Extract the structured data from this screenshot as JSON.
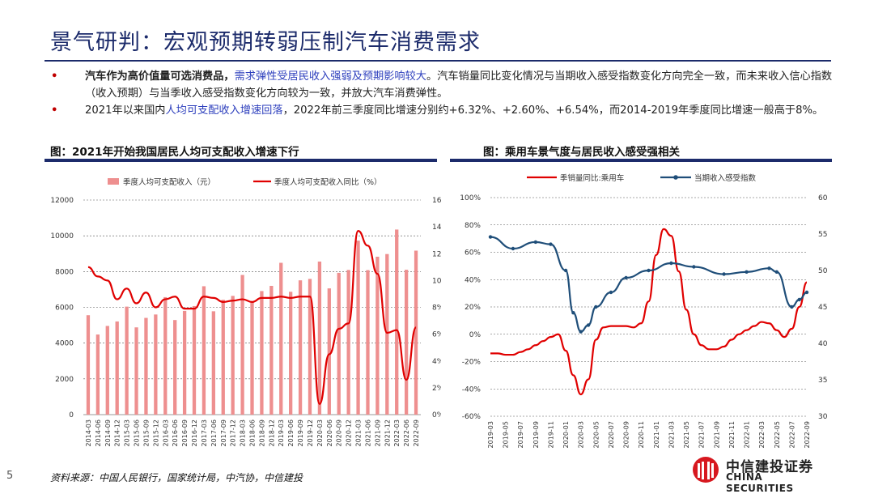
{
  "header": {
    "title": "景气研判：宏观预期转弱压制汽车消费需求"
  },
  "bullets": [
    {
      "bold": "汽车作为高价值量可选消费品，",
      "highlight": "需求弹性受居民收入强弱及预期影响较大",
      "rest": "。汽车销量同比变化情况与当期收入感受指数变化方向完全一致，而未来收入信心指数（收入预期）与当季收入感受指数变化方向较为一致，并放大汽车消费弹性。"
    },
    {
      "pre": "2021年以来国内",
      "highlight": "人均可支配收入增速回落",
      "rest": "，2022年前三季度同比增速分别约+6.32%、+2.60%、+6.54%，而2014-2019年季度同比增速一般高于8%。"
    }
  ],
  "figures": {
    "left_title": "图：2021年开始我国居民人均可支配收入增速下行",
    "right_title": "图：乘用车景气度与居民收入感受强相关"
  },
  "footer": {
    "page": "5",
    "source": "资料来源：中国人民银行，国家统计局，中汽协，中信建投",
    "logo_cn": "中信建投证券",
    "logo_en": "CHINA SECURITIES"
  },
  "colors": {
    "title": "#1c2b6b",
    "bar": "#ee8f8f",
    "red_line": "#e00000",
    "blue_line": "#1f4e79",
    "highlight": "#2d3fbd"
  },
  "chart_data": [
    {
      "type": "bar",
      "legend": [
        "季度人均可支配收入（元）",
        "季度人均可支配收入同比（%）"
      ],
      "categories": [
        "2014-03",
        "2014-06",
        "2014-09",
        "2014-12",
        "2015-03",
        "2015-06",
        "2015-09",
        "2015-12",
        "2016-03",
        "2016-06",
        "2016-09",
        "2016-12",
        "2017-03",
        "2017-06",
        "2017-09",
        "2017-12",
        "2018-03",
        "2018-06",
        "2018-09",
        "2018-12",
        "2019-03",
        "2019-06",
        "2019-09",
        "2019-12",
        "2020-03",
        "2020-06",
        "2020-09",
        "2020-12",
        "2021-03",
        "2021-06",
        "2021-09",
        "2021-12",
        "2022-03",
        "2022-06",
        "2022-09"
      ],
      "series": [
        {
          "name": "季度人均可支配收入（元）",
          "axis": "left",
          "values": [
            5560,
            4480,
            4960,
            5210,
            6040,
            4880,
            5410,
            5600,
            6570,
            5290,
            5800,
            6070,
            7180,
            5780,
            6420,
            6640,
            7810,
            6280,
            6910,
            7200,
            8490,
            6870,
            7510,
            7590,
            8560,
            7060,
            7930,
            8090,
            9730,
            8080,
            8830,
            8980,
            10350,
            8100,
            9170
          ]
        },
        {
          "name": "季度人均可支配收入同比（%）",
          "axis": "right",
          "values": [
            11.0,
            10.3,
            10.0,
            8.6,
            9.4,
            8.3,
            9.1,
            8.0,
            8.6,
            8.8,
            7.9,
            7.9,
            8.8,
            8.7,
            8.4,
            8.5,
            8.6,
            8.4,
            8.7,
            8.7,
            8.8,
            8.7,
            8.8,
            8.8,
            0.8,
            4.5,
            6.4,
            6.8,
            13.7,
            12.6,
            10.5,
            6.1,
            6.3,
            2.6,
            6.5
          ]
        }
      ],
      "y_left": {
        "min": 0,
        "max": 12000,
        "ticks": [
          "0",
          "2000",
          "4000",
          "6000",
          "8000",
          "10000",
          "12000"
        ]
      },
      "y_right": {
        "min": 0,
        "max": 16,
        "ticks": [
          "0%",
          "2%",
          "4%",
          "6%",
          "8%",
          "10%",
          "12%",
          "14%",
          "16%"
        ]
      }
    },
    {
      "type": "line",
      "legend": [
        "季销量同比:乘用车",
        "当期收入感受指数"
      ],
      "categories": [
        "2019-03",
        "2019-04",
        "2019-05",
        "2019-06",
        "2019-07",
        "2019-08",
        "2019-09",
        "2019-10",
        "2019-11",
        "2019-12",
        "2020-01",
        "2020-02",
        "2020-03",
        "2020-04",
        "2020-05",
        "2020-06",
        "2020-07",
        "2020-08",
        "2020-09",
        "2020-10",
        "2020-11",
        "2020-12",
        "2021-01",
        "2021-02",
        "2021-03",
        "2021-04",
        "2021-05",
        "2021-06",
        "2021-07",
        "2021-08",
        "2021-09",
        "2021-10",
        "2021-11",
        "2021-12",
        "2022-01",
        "2022-02",
        "2022-03",
        "2022-04",
        "2022-05",
        "2022-06",
        "2022-07",
        "2022-08",
        "2022-09"
      ],
      "x_tick_labels": [
        "2019-03",
        "2019-05",
        "2019-07",
        "2019-09",
        "2019-11",
        "2020-01",
        "2020-03",
        "2020-05",
        "2020-07",
        "2020-09",
        "2020-11",
        "2021-01",
        "2021-03",
        "2021-05",
        "2021-07",
        "2021-09",
        "2021-11",
        "2022-01",
        "2022-03",
        "2022-05",
        "2022-07",
        "2022-09"
      ],
      "series": [
        {
          "name": "季销量同比:乘用车",
          "axis": "left",
          "values": [
            -14,
            -14,
            -15,
            -15,
            -13,
            -11,
            -8,
            -5,
            -2,
            0,
            -12,
            -30,
            -44,
            -33,
            -4,
            5,
            6,
            6,
            6,
            5,
            8,
            24,
            58,
            77,
            72,
            46,
            18,
            0,
            -8,
            -11,
            -11,
            -9,
            -4,
            0,
            3,
            6,
            9,
            8,
            3,
            -2,
            4,
            20,
            38
          ]
        },
        {
          "name": "当期收入感受指数",
          "axis": "right",
          "points": [
            [
              0,
              54.6
            ],
            [
              3,
              53.0
            ],
            [
              6,
              53.9
            ],
            [
              8,
              53.6
            ],
            [
              10,
              50.0
            ],
            [
              11,
              44.2
            ],
            [
              12,
              41.6
            ],
            [
              13,
              42.5
            ],
            [
              14,
              45.0
            ],
            [
              16,
              47.0
            ],
            [
              18,
              49.0
            ],
            [
              21,
              50.0
            ],
            [
              24,
              51.0
            ],
            [
              27,
              50.5
            ],
            [
              31,
              49.5
            ],
            [
              34,
              49.8
            ],
            [
              37,
              50.3
            ],
            [
              38,
              49.8
            ],
            [
              40,
              45.0
            ],
            [
              41,
              46.0
            ],
            [
              42,
              47.0
            ]
          ]
        }
      ],
      "y_left": {
        "min": -60,
        "max": 100,
        "ticks": [
          "-60%",
          "-40%",
          "-20%",
          "0%",
          "20%",
          "40%",
          "60%",
          "80%",
          "100%"
        ]
      },
      "y_right": {
        "min": 30,
        "max": 60,
        "ticks": [
          "30",
          "35",
          "40",
          "45",
          "50",
          "55",
          "60"
        ]
      }
    }
  ]
}
